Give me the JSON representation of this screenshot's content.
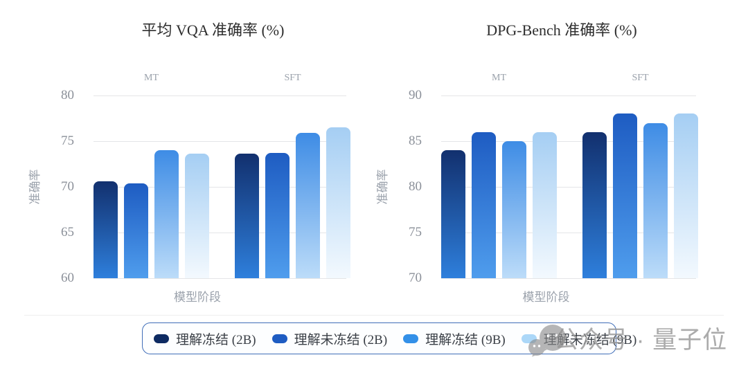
{
  "series_colors": [
    {
      "legend": "#0d2a62",
      "bar_top": "#12306e",
      "bar_bottom": "#2e7fdc"
    },
    {
      "legend": "#1e5cc2",
      "bar_top": "#1e5cc2",
      "bar_bottom": "#4f9ded"
    },
    {
      "legend": "#3390e8",
      "bar_top": "#3e8ce5",
      "bar_bottom": "#bcdcf9"
    },
    {
      "legend": "#abd7f8",
      "bar_top": "#a5cef3",
      "bar_bottom": "#f3f9fe"
    }
  ],
  "legend": {
    "border_color": "#3f6db8",
    "position": "bottom"
  },
  "watermark": {
    "text": "公众号 · 量子位",
    "logo": "wechat-bubbles"
  },
  "chart_data": [
    {
      "type": "bar",
      "title": "平均 VQA 准确率 (%)",
      "xlabel": "模型阶段",
      "ylabel": "准确率",
      "categories": [
        "MT",
        "SFT"
      ],
      "series": [
        {
          "name": "理解冻结 (2B)",
          "values": [
            70.6,
            73.6
          ]
        },
        {
          "name": "理解未冻结 (2B)",
          "values": [
            70.4,
            73.7
          ]
        },
        {
          "name": "理解冻结 (9B)",
          "values": [
            74.0,
            75.9
          ]
        },
        {
          "name": "理解未冻结 (9B)",
          "values": [
            73.6,
            76.5
          ]
        }
      ],
      "ylim": [
        60,
        80
      ],
      "yticks": [
        60,
        65,
        70,
        75,
        80
      ],
      "grid": true,
      "legend_position": "bottom"
    },
    {
      "type": "bar",
      "title": "DPG-Bench 准确率 (%)",
      "xlabel": "模型阶段",
      "ylabel": "准确率",
      "categories": [
        "MT",
        "SFT"
      ],
      "series": [
        {
          "name": "理解冻结 (2B)",
          "values": [
            84.0,
            86.0
          ]
        },
        {
          "name": "理解未冻结 (2B)",
          "values": [
            86.0,
            88.0
          ]
        },
        {
          "name": "理解冻结 (9B)",
          "values": [
            85.0,
            87.0
          ]
        },
        {
          "name": "理解未冻结 (9B)",
          "values": [
            86.0,
            88.0
          ]
        }
      ],
      "ylim": [
        70,
        90
      ],
      "yticks": [
        70,
        75,
        80,
        85,
        90
      ],
      "grid": true,
      "legend_position": "bottom"
    }
  ]
}
